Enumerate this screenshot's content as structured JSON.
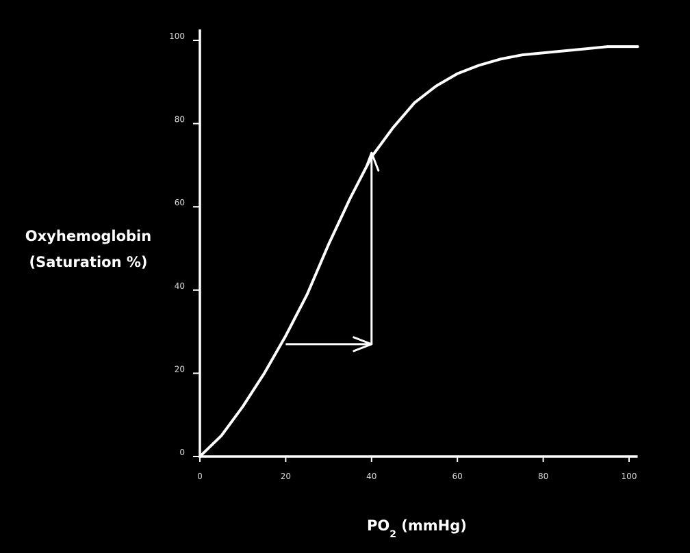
{
  "chart_data": {
    "type": "line",
    "ylabel_line1": "Oxyhemoglobin",
    "ylabel_line2": "(Saturation %)",
    "xlabel_main": "PO",
    "xlabel_sub": "2",
    "xlabel_unit": " (mmHg)",
    "xlim": [
      0,
      102
    ],
    "ylim": [
      0,
      100
    ],
    "xticks": [
      "0",
      "20",
      "40",
      "60",
      "80",
      "100"
    ],
    "yticks": [
      "0",
      "20",
      "40",
      "60",
      "80",
      "100"
    ],
    "grid": false,
    "colors": {
      "background": "#000000",
      "line": "#ffffff"
    },
    "series": [
      {
        "x": [
          0,
          5,
          10,
          15,
          20,
          25,
          30,
          35,
          40,
          45,
          50,
          55,
          60,
          65,
          70,
          75,
          80,
          85,
          90,
          95,
          100,
          102
        ],
        "y": [
          0,
          5,
          12,
          20,
          29,
          39,
          51,
          62,
          72,
          79,
          85,
          89,
          92,
          94,
          95.5,
          96.5,
          97,
          97.5,
          98,
          98.5,
          98.5,
          98.5
        ]
      }
    ],
    "annotations": [
      {
        "type": "arrow",
        "from": [
          20,
          27
        ],
        "to": [
          40,
          27
        ]
      },
      {
        "type": "arrow",
        "from": [
          40,
          27
        ],
        "to": [
          40,
          73
        ]
      }
    ]
  }
}
